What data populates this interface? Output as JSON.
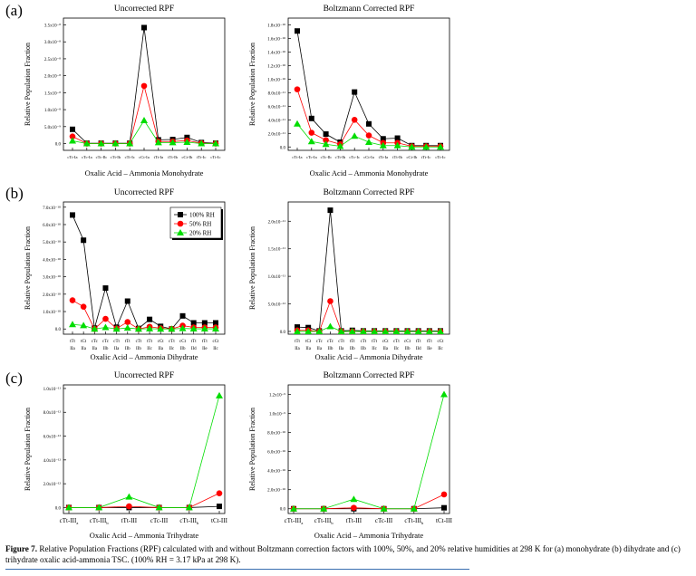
{
  "panel_labels": [
    "(a)",
    "(b)",
    "(c)"
  ],
  "legend": [
    {
      "name": "100% RH",
      "color": "#000000",
      "marker": "square"
    },
    {
      "name": "50% RH",
      "color": "#ff0000",
      "marker": "circle"
    },
    {
      "name": "20% RH",
      "color": "#00dd00",
      "marker": "triangle"
    }
  ],
  "caption": {
    "label": "Figure 7.",
    "text": " Relative Population Fractions (RPF) calculated with and without Boltzmann correction factors with 100%, 50%, and 20% relative humidities at 298 K for (a) monohydrate (b) dihydrate and (c) trihydrate oxalic acid-ammonia TSC. (100% RH = 3.17 kPa at 298 K)."
  },
  "chart_data": [
    {
      "id": "a-left",
      "type": "line",
      "title": "Uncorrected RPF",
      "xlabel": "Oxalic Acid – Ammonia Monohydrate",
      "ylabel": "Relative Population Fraction",
      "categories": [
        "cTt-Ia",
        "cTc-Ia",
        "cTc-Ib",
        "cTt-Ib",
        "cTt-Ic",
        "cCt-Ia",
        "tTt-Ia",
        "tTt-Ib",
        "cCt-Ib",
        "tTt-Ic",
        "cTt-Ic"
      ],
      "ylim": [
        -0.2,
        3.7
      ],
      "yticks": [
        0,
        0.5,
        1.0,
        1.5,
        2.0,
        2.5,
        3.0,
        3.5
      ],
      "ytick_labels": [
        "0.0",
        "5.0x10⁻⁹",
        "1.0x10⁻⁸",
        "1.5x10⁻⁸",
        "2.0x10⁻⁸",
        "2.5x10⁻⁸",
        "3.0x10⁻⁸",
        "3.5x10⁻⁸"
      ],
      "y_unit": "x10^-8",
      "series": [
        {
          "name": "100% RH",
          "values": [
            0.42,
            0.01,
            0.01,
            0.01,
            0.01,
            3.42,
            0.11,
            0.12,
            0.18,
            0.03,
            0.01
          ]
        },
        {
          "name": "50% RH",
          "values": [
            0.21,
            0.0,
            0.0,
            0.0,
            0.0,
            1.7,
            0.06,
            0.06,
            0.09,
            0.01,
            0.0
          ]
        },
        {
          "name": "20% RH",
          "values": [
            0.08,
            0.0,
            0.0,
            0.0,
            0.0,
            0.68,
            0.03,
            0.03,
            0.04,
            0.0,
            0.0
          ]
        }
      ]
    },
    {
      "id": "a-right",
      "type": "line",
      "title": "Boltzmann Corrected RPF",
      "xlabel": "Oxalic Acid – Ammonia Monohydrate",
      "ylabel": "Relative Population Fraction",
      "categories": [
        "cTt-Ia",
        "cTc-Ia",
        "cTc-Ib",
        "cTt-Ib",
        "cTc-Ic",
        "cCt-Ia",
        "tTt-Ia",
        "tTt-Ib",
        "cCt-Ib",
        "tTt-Ic",
        "cTt-Ic"
      ],
      "ylim": [
        -0.05,
        1.9
      ],
      "yticks": [
        0,
        0.2,
        0.4,
        0.6,
        0.8,
        1.0,
        1.2,
        1.4,
        1.6,
        1.8
      ],
      "ytick_labels": [
        "0.0",
        "2.0x10⁻¹¹",
        "4.0x10⁻¹¹",
        "6.0x10⁻¹¹",
        "8.0x10⁻¹¹",
        "1.0x10⁻¹⁰",
        "1.2x10⁻¹⁰",
        "1.4x10⁻¹⁰",
        "1.6x10⁻¹⁰",
        "1.8x10⁻¹⁰"
      ],
      "y_unit": "x10^-10",
      "series": [
        {
          "name": "100% RH",
          "values": [
            1.71,
            0.42,
            0.19,
            0.07,
            0.81,
            0.34,
            0.12,
            0.13,
            0.02,
            0.02,
            0.02
          ]
        },
        {
          "name": "50% RH",
          "values": [
            0.85,
            0.21,
            0.1,
            0.04,
            0.4,
            0.17,
            0.06,
            0.06,
            0.01,
            0.01,
            0.01
          ]
        },
        {
          "name": "20% RH",
          "values": [
            0.34,
            0.08,
            0.04,
            0.01,
            0.16,
            0.07,
            0.02,
            0.02,
            0.0,
            0.0,
            0.0
          ]
        }
      ]
    },
    {
      "id": "b-left",
      "type": "line",
      "title": "Uncorrected RPF",
      "xlabel": "Oxalic Acid – Ammonia Dihydrate",
      "ylabel": "Relative Population Fraction",
      "categories": [
        "tTt IIa",
        "tCt IIa",
        "cTc IIa",
        "cTc IIb",
        "cTt IIa",
        "tTt IIb",
        "cTt IIb",
        "tTt IIc",
        "cCt IIa",
        "cTt IIc",
        "cCt IIb",
        "tTt IId",
        "tTt IIe",
        "cCt IIc"
      ],
      "ylim": [
        -0.3,
        7.3
      ],
      "yticks": [
        0,
        1,
        2,
        3,
        4,
        5,
        6,
        7
      ],
      "ytick_labels": [
        "0.0",
        "1.0x10⁻¹⁰",
        "2.0x10⁻¹⁰",
        "3.0x10⁻¹⁰",
        "4.0x10⁻¹⁰",
        "5.0x10⁻¹⁰",
        "6.0x10⁻¹⁰",
        "7.0x10⁻¹⁰"
      ],
      "y_unit": "x10^-10",
      "legend_position": "top-right",
      "series": [
        {
          "name": "100% RH",
          "values": [
            6.55,
            5.1,
            0.05,
            2.35,
            0.1,
            1.6,
            0.03,
            0.55,
            0.15,
            0.0,
            0.75,
            0.35,
            0.35,
            0.35
          ]
        },
        {
          "name": "50% RH",
          "values": [
            1.65,
            1.28,
            0.0,
            0.58,
            0.03,
            0.4,
            0.0,
            0.13,
            0.04,
            0.0,
            0.19,
            0.09,
            0.09,
            0.09
          ]
        },
        {
          "name": "20% RH",
          "values": [
            0.26,
            0.2,
            0.0,
            0.09,
            0.0,
            0.06,
            0.0,
            0.02,
            0.0,
            0.0,
            0.03,
            0.01,
            0.01,
            0.01
          ]
        }
      ]
    },
    {
      "id": "b-right",
      "type": "line",
      "title": "Boltzmann Corrected RPF",
      "xlabel": "Oxalic Acid – Ammonia Dihydrate",
      "ylabel": "Relative Population Fraction",
      "categories": [
        "tTt IIa",
        "tCt IIa",
        "cTc IIa",
        "cTc IIb",
        "cTt IIa",
        "tTt IIb",
        "cTt IIb",
        "tTt IIc",
        "cCt IIa",
        "cTt IIc",
        "cCt IIb",
        "tTt IId",
        "tTt IIe",
        "cCt IIc"
      ],
      "ylim": [
        -0.05,
        2.35
      ],
      "yticks": [
        0,
        0.5,
        1.0,
        1.5,
        2.0
      ],
      "ytick_labels": [
        "0.0",
        "5.0x10⁻¹²",
        "1.0x10⁻¹¹",
        "1.5x10⁻¹¹",
        "2.0x10⁻¹¹"
      ],
      "y_unit": "x10^-11",
      "series": [
        {
          "name": "100% RH",
          "values": [
            0.08,
            0.07,
            0.01,
            2.2,
            0.01,
            0.02,
            0.01,
            0.01,
            0.01,
            0.01,
            0.01,
            0.01,
            0.01,
            0.01
          ]
        },
        {
          "name": "50% RH",
          "values": [
            0.02,
            0.02,
            0.0,
            0.55,
            0.0,
            0.0,
            0.0,
            0.0,
            0.0,
            0.0,
            0.0,
            0.0,
            0.0,
            0.0
          ]
        },
        {
          "name": "20% RH",
          "values": [
            0.0,
            0.0,
            0.0,
            0.09,
            0.0,
            0.0,
            0.0,
            0.0,
            0.0,
            0.0,
            0.0,
            0.0,
            0.0,
            0.0
          ]
        }
      ]
    },
    {
      "id": "c-left",
      "type": "line",
      "title": "Uncorrected RPF",
      "xlabel": "Oxalic Acid – Ammonia Trihydrate",
      "ylabel": "Relative Population Fraction",
      "categories": [
        "cTt-III_a",
        "cTt-III_b",
        "tTt-III",
        "cTc-III",
        "cTt-III_b",
        "tCt-III"
      ],
      "ylim": [
        -0.05,
        1.03
      ],
      "yticks": [
        0,
        0.2,
        0.4,
        0.6,
        0.8,
        1.0
      ],
      "ytick_labels": [
        "0.0",
        "2.0x10⁻¹²",
        "4.0x10⁻¹²",
        "6.0x10⁻¹²",
        "8.0x10⁻¹²",
        "1.0x10⁻¹¹"
      ],
      "y_unit": "x10^-11",
      "series": [
        {
          "name": "100% RH",
          "values": [
            0.0,
            0.0,
            0.0,
            0.0,
            0.0,
            0.01
          ]
        },
        {
          "name": "50% RH",
          "values": [
            0.0,
            0.0,
            0.01,
            0.0,
            0.0,
            0.12
          ]
        },
        {
          "name": "20% RH",
          "values": [
            0.0,
            0.0,
            0.09,
            0.0,
            0.0,
            0.94
          ]
        }
      ]
    },
    {
      "id": "c-right",
      "type": "line",
      "title": "Boltzmann Corrected RPF",
      "xlabel": "Oxalic Acid – Ammonia Trihydrate",
      "ylabel": "Relative Population Fraction",
      "categories": [
        "cTt-III_a",
        "cTt-III_b",
        "tTt-III",
        "cTc-III",
        "cTt-III_b",
        "tCt-III"
      ],
      "ylim": [
        -0.05,
        1.3
      ],
      "yticks": [
        0,
        0.2,
        0.4,
        0.6,
        0.8,
        1.0,
        1.2
      ],
      "ytick_labels": [
        "0.0",
        "2.0x10⁻¹⁰",
        "4.0x10⁻¹⁰",
        "6.0x10⁻¹⁰",
        "8.0x10⁻¹⁰",
        "1.0x10⁻⁹",
        "1.2x10⁻⁹"
      ],
      "y_unit": "x10^-9",
      "series": [
        {
          "name": "100% RH",
          "values": [
            0.0,
            0.0,
            0.0,
            0.0,
            0.0,
            0.01
          ]
        },
        {
          "name": "50% RH",
          "values": [
            0.0,
            0.0,
            0.01,
            0.0,
            0.0,
            0.15
          ]
        },
        {
          "name": "20% RH",
          "values": [
            0.0,
            0.0,
            0.1,
            0.0,
            0.0,
            1.2
          ]
        }
      ]
    }
  ]
}
